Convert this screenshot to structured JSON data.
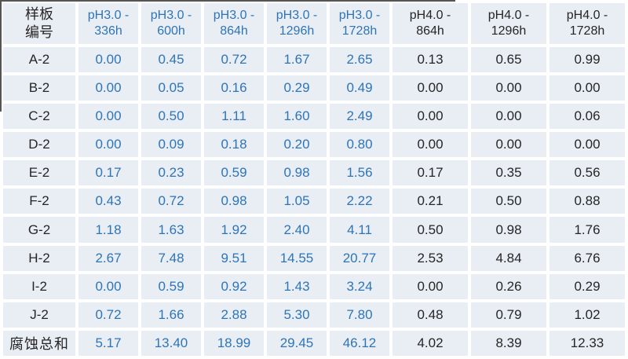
{
  "styles": {
    "accent_blue": "#2E75B6",
    "text_dark": "#262626",
    "cell_bg": "#E9EDF4",
    "grid_white": "#FFFFFF"
  },
  "chart_data": {
    "type": "table",
    "row_header": "样板编号",
    "row_header_lines": [
      "样板",
      "编号"
    ],
    "columns": [
      "pH3.0 - 336h",
      "pH3.0 - 600h",
      "pH3.0 - 864h",
      "pH3.0 - 1296h",
      "pH3.0 - 1728h",
      "pH4.0 - 864h",
      "pH4.0 - 1296h",
      "pH4.0 - 1728h"
    ],
    "column_value_colors": [
      "#2E75B6",
      "#2E75B6",
      "#2E75B6",
      "#2E75B6",
      "#2E75B6",
      "#262626",
      "#262626",
      "#262626"
    ],
    "rows": [
      {
        "label": "A-2",
        "values": [
          0.0,
          0.45,
          0.72,
          1.67,
          2.65,
          0.13,
          0.65,
          0.99
        ]
      },
      {
        "label": "B-2",
        "values": [
          0.0,
          0.05,
          0.16,
          0.29,
          0.49,
          0.0,
          0.0,
          0.0
        ]
      },
      {
        "label": "C-2",
        "values": [
          0.0,
          0.5,
          1.11,
          1.6,
          2.49,
          0.0,
          0.0,
          0.06
        ]
      },
      {
        "label": "D-2",
        "values": [
          0.0,
          0.09,
          0.18,
          0.2,
          0.8,
          0.0,
          0.0,
          0.0
        ]
      },
      {
        "label": "E-2",
        "values": [
          0.17,
          0.23,
          0.59,
          0.98,
          1.56,
          0.17,
          0.35,
          0.56
        ]
      },
      {
        "label": "F-2",
        "values": [
          0.43,
          0.72,
          0.98,
          1.05,
          2.22,
          0.21,
          0.5,
          0.88
        ]
      },
      {
        "label": "G-2",
        "values": [
          1.18,
          1.63,
          1.92,
          2.4,
          4.11,
          0.5,
          0.98,
          1.76
        ]
      },
      {
        "label": "H-2",
        "values": [
          2.67,
          7.48,
          9.51,
          14.55,
          20.77,
          2.53,
          4.84,
          6.76
        ]
      },
      {
        "label": "I-2",
        "values": [
          0.0,
          0.59,
          0.92,
          1.43,
          3.24,
          0.0,
          0.26,
          0.29
        ]
      },
      {
        "label": "J-2",
        "values": [
          0.72,
          1.66,
          2.88,
          5.3,
          7.8,
          0.48,
          0.79,
          1.02
        ]
      }
    ],
    "total_row": {
      "label": "腐蚀总和",
      "values": [
        5.17,
        13.4,
        18.99,
        29.45,
        46.12,
        4.02,
        8.39,
        12.33
      ]
    }
  }
}
